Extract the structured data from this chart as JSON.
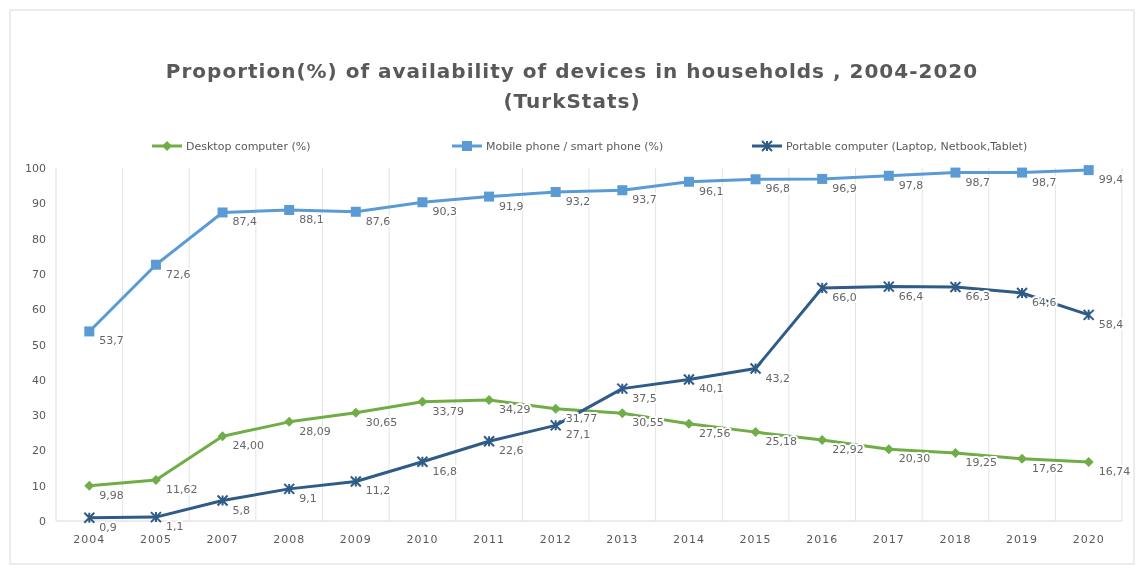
{
  "chart_data": {
    "type": "line",
    "title": "Proportion(%) of availability of devices in households , 2004-2020\n(TurkStats)",
    "categories": [
      "2004",
      "2005",
      "2007",
      "2008",
      "2009",
      "2010",
      "2011",
      "2012",
      "2013",
      "2014",
      "2015",
      "2016",
      "2017",
      "2018",
      "2019",
      "2020"
    ],
    "ylim": [
      0,
      100
    ],
    "yticks": [
      0,
      10,
      20,
      30,
      40,
      50,
      60,
      70,
      80,
      90,
      100
    ],
    "grid": "x",
    "legend": "top",
    "series": [
      {
        "name": "Desktop computer (%)",
        "color": "#70ad47",
        "marker": "diamond",
        "values": [
          9.98,
          11.62,
          24.0,
          28.09,
          30.65,
          33.79,
          34.29,
          31.77,
          30.55,
          27.56,
          25.18,
          22.92,
          20.3,
          19.25,
          17.62,
          16.74
        ],
        "value_labels": [
          "9,98",
          "11,62",
          "24,00",
          "28,09",
          "30,65",
          "33,79",
          "34,29",
          "31,77",
          "30,55",
          "27,56",
          "25,18",
          "22,92",
          "20,30",
          "19,25",
          "17,62",
          "16,74"
        ]
      },
      {
        "name": "Mobile phone / smart phone (%)",
        "color": "#5b9bd5",
        "marker": "square",
        "values": [
          53.7,
          72.6,
          87.4,
          88.1,
          87.6,
          90.3,
          91.9,
          93.2,
          93.7,
          96.1,
          96.8,
          96.9,
          97.8,
          98.7,
          98.7,
          99.4
        ],
        "value_labels": [
          "53,7",
          "72,6",
          "87,4",
          "88,1",
          "87,6",
          "90,3",
          "91,9",
          "93,2",
          "93,7",
          "96,1",
          "96,8",
          "96,9",
          "97,8",
          "98,7",
          "98,7",
          "99,4"
        ]
      },
      {
        "name": "Portable computer (Laptop, Netbook,Tablet)",
        "color": "#2f5b88",
        "marker": "cross",
        "values": [
          0.9,
          1.1,
          5.8,
          9.1,
          11.2,
          16.8,
          22.6,
          27.1,
          37.5,
          40.1,
          43.2,
          66.0,
          66.4,
          66.3,
          64.6,
          58.4
        ],
        "value_labels": [
          "0,9",
          "1,1",
          "5,8",
          "9,1",
          "11,2",
          "16,8",
          "22,6",
          "27,1",
          "37,5",
          "40,1",
          "43,2",
          "66,0",
          "66,4",
          "66,3",
          "64,6",
          "58,4"
        ]
      }
    ]
  }
}
